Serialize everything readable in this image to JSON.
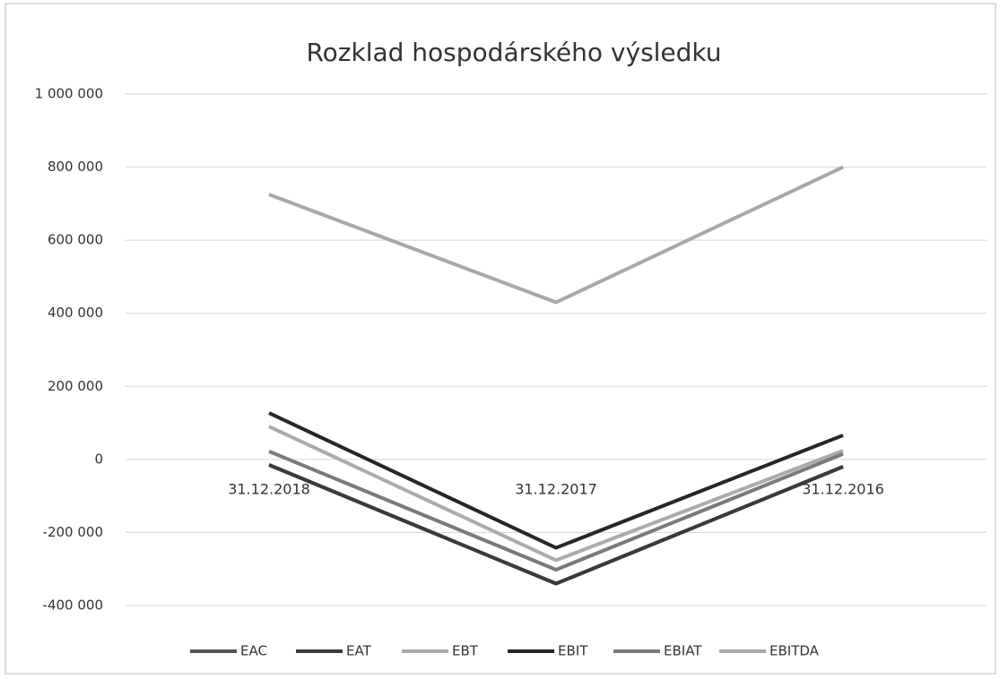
{
  "chart_data": {
    "type": "line",
    "title": "Rozklad hospodárského výsledku",
    "categories": [
      "31.12.2018",
      "31.12.2017",
      "31.12.2016"
    ],
    "series": [
      {
        "name": "EAC",
        "color": "#555555",
        "values": [
          -15000,
          -340000,
          -20000
        ]
      },
      {
        "name": "EAT",
        "color": "#3a3a3a",
        "values": [
          -15000,
          -340000,
          -20000
        ]
      },
      {
        "name": "EBT",
        "color": "#ababab",
        "values": [
          90000,
          -276000,
          24000
        ]
      },
      {
        "name": "EBIT",
        "color": "#262626",
        "values": [
          127000,
          -242000,
          66000
        ]
      },
      {
        "name": "EBIAT",
        "color": "#7a7a7a",
        "values": [
          22000,
          -302000,
          15000
        ]
      },
      {
        "name": "EBITDA",
        "color": "#a8a8a8",
        "values": [
          725000,
          430000,
          800000
        ]
      }
    ],
    "ylim": [
      -400000,
      1000000
    ],
    "yticks": [
      {
        "value": -400000,
        "label": "-400 000"
      },
      {
        "value": -200000,
        "label": "-200 000"
      },
      0,
      {
        "value": 200000,
        "label": "200 000"
      },
      {
        "value": 400000,
        "label": "400 000"
      },
      {
        "value": 600000,
        "label": "600 000"
      },
      {
        "value": 800000,
        "label": "800 000"
      },
      {
        "value": 1000000,
        "label": "1 000 000"
      }
    ],
    "grid": true,
    "legend": "bottom"
  }
}
